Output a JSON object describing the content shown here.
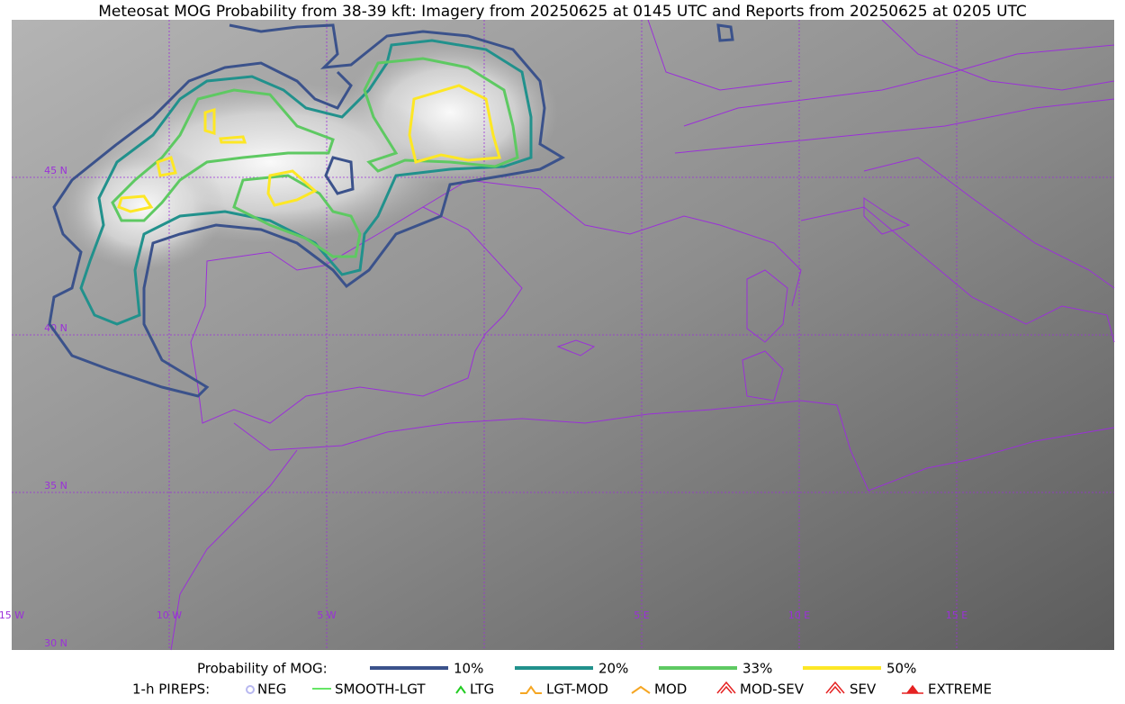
{
  "title": "Meteosat MOG Probability from 38-39 kft: Imagery from 20250625 at 0145 UTC and Reports from 20250625 at 0205 UTC",
  "map": {
    "lat_labels": [
      "45 N",
      "40 N",
      "35 N",
      "30 N"
    ],
    "lon_labels": [
      "15 W",
      "10 W",
      "5 W",
      "5 E",
      "10 E",
      "15 E"
    ]
  },
  "legend": {
    "probability": {
      "title": "Probability of MOG:",
      "items": [
        {
          "label": "10%",
          "color": "#3b528b"
        },
        {
          "label": "20%",
          "color": "#21918c"
        },
        {
          "label": "33%",
          "color": "#5ec962"
        },
        {
          "label": "50%",
          "color": "#fde725"
        }
      ]
    },
    "pireps": {
      "title": "1-h PIREPS:",
      "items": [
        {
          "label": "NEG",
          "color": "#b8b8f0"
        },
        {
          "label": "SMOOTH-LGT",
          "color": "#33dd33"
        },
        {
          "label": "LTG",
          "color": "#22cc22"
        },
        {
          "label": "LGT-MOD",
          "color": "#f5a623"
        },
        {
          "label": "MOD",
          "color": "#f5a623"
        },
        {
          "label": "MOD-SEV",
          "color": "#e52222"
        },
        {
          "label": "SEV",
          "color": "#e52222"
        },
        {
          "label": "EXTREME",
          "color": "#e52222"
        }
      ]
    }
  }
}
